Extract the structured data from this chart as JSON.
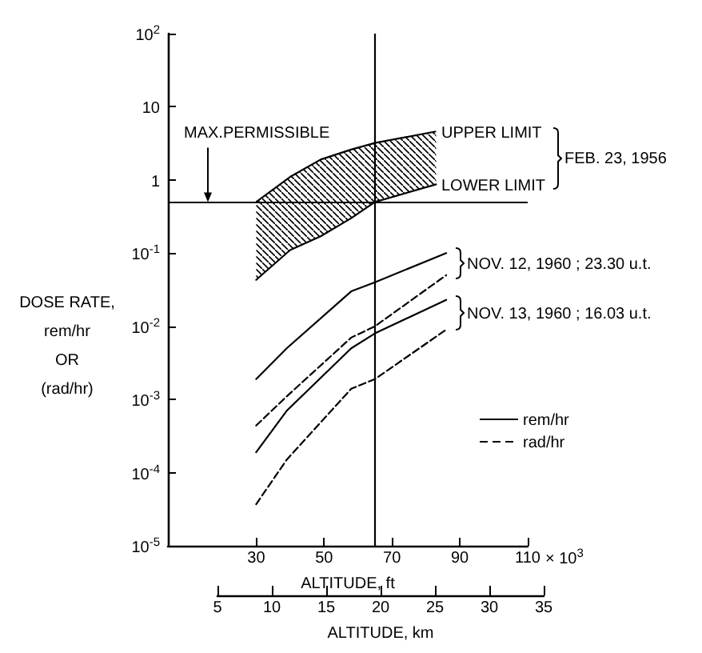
{
  "chart_data": {
    "type": "line",
    "xlabel": "ALTITUDE, ft",
    "x2label": "ALTITUDE, km",
    "ylabel": "DOSE RATE,\nrem/hr\nOR\n(rad/hr)",
    "xlim": [
      4,
      110
    ],
    "xticks": [
      30,
      50,
      70,
      90,
      110
    ],
    "x2lim": [
      5,
      35
    ],
    "x2ticks": [
      5,
      10,
      15,
      20,
      25,
      30,
      35
    ],
    "ylim": [
      1e-05,
      100
    ],
    "yticks": [
      {
        "value": 1e-05,
        "label": "10$^{-5}$"
      },
      {
        "value": 0.0001,
        "label": "10$^{-4}$"
      },
      {
        "value": 0.001,
        "label": "10$^{-3}$"
      },
      {
        "value": 0.01,
        "label": "10$^{-2}$"
      },
      {
        "value": 0.1,
        "label": "10$^{-1}$"
      },
      1,
      10,
      {
        "value": 100,
        "label": "10$^{2}$"
      }
    ],
    "log": "y",
    "grid": false,
    "legend": "right",
    "marker": "none",
    "series": [
      {
        "x": [
          30,
          40,
          49,
          58,
          65,
          83
        ],
        "values": [
          0.043,
          0.11,
          0.17,
          0.3,
          0.5,
          0.87
        ],
        "lower": [
          0.043,
          0.11,
          0.17,
          0.3,
          0.5,
          0.87
        ],
        "upper": [
          0.5,
          1.1,
          1.9,
          2.6,
          3.2,
          4.6
        ],
        "color": "#000000",
        "line_style": "solid"
      },
      {
        "name": "rem/hr",
        "x": [
          30,
          39,
          58,
          65,
          86
        ],
        "values": [
          0.0019,
          0.005,
          0.03,
          0.04,
          0.1
        ],
        "color": "#000000",
        "line_style": "solid"
      },
      {
        "name": "rad/hr",
        "x": [
          30,
          39,
          58,
          65,
          86
        ],
        "values": [
          0.00044,
          0.0011,
          0.007,
          0.01,
          0.05
        ],
        "color": "#000000",
        "line_style": "dashed"
      },
      {
        "x": [
          30,
          39,
          58,
          65,
          86
        ],
        "values": [
          0.00019,
          0.0007,
          0.005,
          0.008,
          0.023
        ],
        "color": "#000000",
        "line_style": "solid"
      },
      {
        "x": [
          30,
          39,
          58,
          65,
          86
        ],
        "values": [
          3.7e-05,
          0.00015,
          0.0014,
          0.0019,
          0.009
        ],
        "color": "#000000",
        "line_style": "dashed"
      }
    ],
    "ref_lines": [
      {
        "axis": "y",
        "value": 0.5,
        "label": "MAX.PERMISSIBLE"
      },
      {
        "axis": "x",
        "value": 65
      }
    ],
    "annotations": [
      "UPPER LIMIT",
      "LOWER LIMIT",
      "FEB. 23, 1956",
      "NOV. 12, 1960 ; 23.30 u.t.",
      "NOV. 13, 1960 ; 16.03 u.t.",
      "× 10$^{3}$"
    ]
  }
}
